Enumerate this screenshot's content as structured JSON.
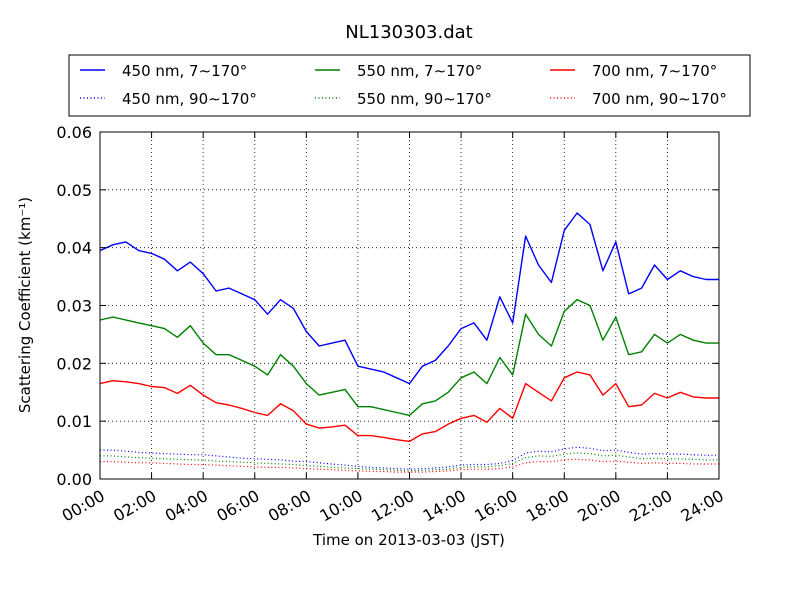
{
  "chart_data": {
    "type": "line",
    "title": "NL130303.dat",
    "xlabel": "Time on 2013-03-03 (JST)",
    "ylabel": "Scattering Coefficient (km⁻¹)",
    "xlim": [
      "00:00",
      "24:00"
    ],
    "ylim": [
      0,
      0.06
    ],
    "x_ticks": [
      "00:00",
      "02:00",
      "04:00",
      "06:00",
      "08:00",
      "10:00",
      "12:00",
      "14:00",
      "16:00",
      "18:00",
      "20:00",
      "22:00",
      "24:00"
    ],
    "y_ticks": [
      "0.00",
      "0.01",
      "0.02",
      "0.03",
      "0.04",
      "0.05",
      "0.06"
    ],
    "grid": true,
    "legend_position": "top",
    "x_hours": [
      0,
      0.5,
      1,
      1.5,
      2,
      2.5,
      3,
      3.5,
      4,
      4.5,
      5,
      5.5,
      6,
      6.5,
      7,
      7.5,
      8,
      8.5,
      9,
      9.5,
      10,
      10.5,
      11,
      11.5,
      12,
      12.5,
      13,
      13.5,
      14,
      14.5,
      15,
      15.5,
      16,
      16.5,
      17,
      17.5,
      18,
      18.5,
      19,
      19.5,
      20,
      20.5,
      21,
      21.5,
      22,
      22.5,
      23,
      23.5,
      24
    ],
    "series": [
      {
        "name": "450 nm, 7∼170°",
        "color": "#0000ff",
        "style": "solid",
        "values": [
          0.0395,
          0.0405,
          0.041,
          0.0395,
          0.039,
          0.038,
          0.036,
          0.0375,
          0.0355,
          0.0325,
          0.033,
          0.032,
          0.031,
          0.0285,
          0.031,
          0.0295,
          0.0255,
          0.023,
          0.0235,
          0.024,
          0.0195,
          0.019,
          0.0185,
          0.0175,
          0.0165,
          0.0195,
          0.0205,
          0.023,
          0.026,
          0.027,
          0.024,
          0.0315,
          0.027,
          0.042,
          0.037,
          0.034,
          0.043,
          0.046,
          0.044,
          0.036,
          0.041,
          0.032,
          0.033,
          0.037,
          0.0345,
          0.036,
          0.035,
          0.0345,
          0.0345
        ]
      },
      {
        "name": "450 nm, 90∼170°",
        "color": "#0000ff",
        "style": "dotted",
        "values": [
          0.005,
          0.005,
          0.0048,
          0.0046,
          0.0045,
          0.0044,
          0.0043,
          0.0042,
          0.0042,
          0.004,
          0.0038,
          0.0036,
          0.0035,
          0.0034,
          0.0033,
          0.0031,
          0.003,
          0.0028,
          0.0026,
          0.0024,
          0.0022,
          0.002,
          0.0019,
          0.0018,
          0.0017,
          0.0018,
          0.0019,
          0.0021,
          0.0024,
          0.0025,
          0.0025,
          0.0027,
          0.0032,
          0.0045,
          0.0048,
          0.0047,
          0.0052,
          0.0055,
          0.0053,
          0.0049,
          0.005,
          0.0046,
          0.0043,
          0.0044,
          0.0043,
          0.0043,
          0.0042,
          0.0041,
          0.0041
        ]
      },
      {
        "name": "550 nm, 7∼170°",
        "color": "#008000",
        "style": "solid",
        "values": [
          0.0275,
          0.028,
          0.0275,
          0.027,
          0.0265,
          0.026,
          0.0245,
          0.0265,
          0.0235,
          0.0215,
          0.0215,
          0.0205,
          0.0195,
          0.018,
          0.0215,
          0.0195,
          0.0165,
          0.0145,
          0.015,
          0.0155,
          0.0125,
          0.0125,
          0.012,
          0.0115,
          0.011,
          0.013,
          0.0135,
          0.015,
          0.0175,
          0.0185,
          0.0165,
          0.021,
          0.018,
          0.0285,
          0.025,
          0.023,
          0.029,
          0.031,
          0.03,
          0.024,
          0.028,
          0.0215,
          0.022,
          0.025,
          0.0235,
          0.025,
          0.024,
          0.0235,
          0.0235
        ]
      },
      {
        "name": "550 nm, 90∼170°",
        "color": "#008000",
        "style": "dotted",
        "values": [
          0.004,
          0.004,
          0.0038,
          0.0037,
          0.0036,
          0.0035,
          0.0034,
          0.0033,
          0.0033,
          0.0031,
          0.003,
          0.0029,
          0.0028,
          0.0027,
          0.0026,
          0.0025,
          0.0023,
          0.0022,
          0.002,
          0.0019,
          0.0018,
          0.0017,
          0.0016,
          0.0015,
          0.0014,
          0.0015,
          0.0016,
          0.0017,
          0.002,
          0.0021,
          0.0021,
          0.0023,
          0.0027,
          0.0037,
          0.004,
          0.0039,
          0.0043,
          0.0045,
          0.0044,
          0.004,
          0.0041,
          0.0038,
          0.0035,
          0.0036,
          0.0035,
          0.0035,
          0.0034,
          0.0033,
          0.0033
        ]
      },
      {
        "name": "700 nm, 7∼170°",
        "color": "#ff0000",
        "style": "solid",
        "values": [
          0.0165,
          0.017,
          0.0168,
          0.0165,
          0.016,
          0.0158,
          0.0148,
          0.0162,
          0.0145,
          0.0132,
          0.0128,
          0.0122,
          0.0115,
          0.011,
          0.013,
          0.0118,
          0.0095,
          0.0088,
          0.009,
          0.0093,
          0.0075,
          0.0075,
          0.0072,
          0.0068,
          0.0065,
          0.0078,
          0.0082,
          0.0095,
          0.0105,
          0.011,
          0.0098,
          0.0122,
          0.0105,
          0.0165,
          0.015,
          0.0135,
          0.0175,
          0.0185,
          0.018,
          0.0145,
          0.0165,
          0.0125,
          0.0128,
          0.0148,
          0.014,
          0.015,
          0.0142,
          0.014,
          0.014
        ]
      },
      {
        "name": "700 nm, 90∼170°",
        "color": "#ff0000",
        "style": "dotted",
        "values": [
          0.003,
          0.003,
          0.0029,
          0.0028,
          0.0028,
          0.0027,
          0.0026,
          0.0025,
          0.0025,
          0.0024,
          0.0023,
          0.0022,
          0.0021,
          0.002,
          0.002,
          0.0019,
          0.0018,
          0.0017,
          0.0016,
          0.0015,
          0.0014,
          0.0013,
          0.0013,
          0.0012,
          0.0012,
          0.0012,
          0.0013,
          0.0014,
          0.0016,
          0.0017,
          0.0017,
          0.0018,
          0.0021,
          0.0028,
          0.003,
          0.003,
          0.0033,
          0.0034,
          0.0033,
          0.003,
          0.0031,
          0.0029,
          0.0027,
          0.0028,
          0.0027,
          0.0027,
          0.0026,
          0.0026,
          0.0026
        ]
      }
    ]
  }
}
